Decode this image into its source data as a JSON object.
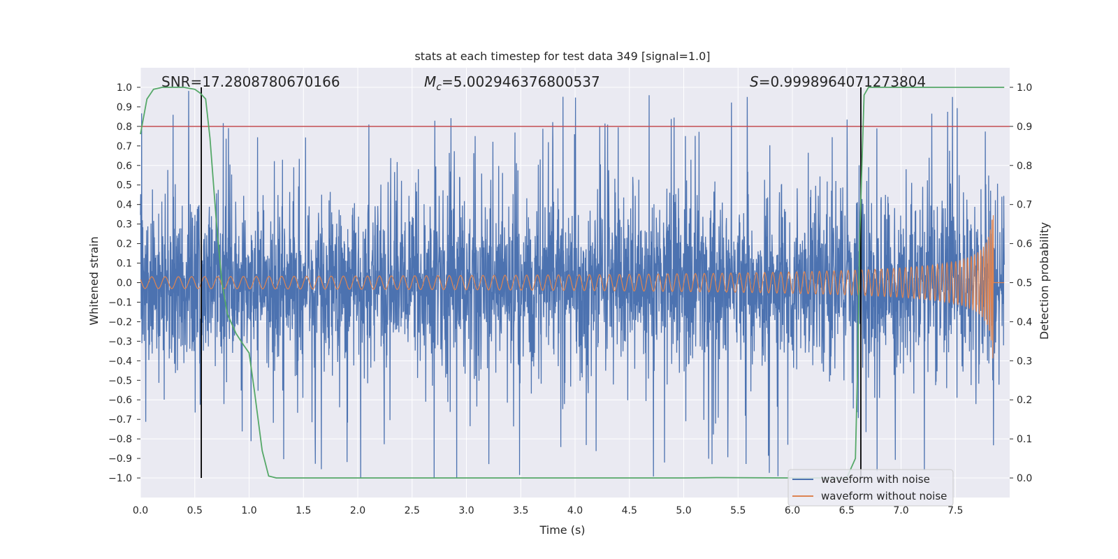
{
  "chart_data": {
    "type": "line",
    "title": "stats at each timestep for test data 349 [signal=1.0]",
    "xlabel": "Time (s)",
    "ylabel_left": "Whitened strain",
    "ylabel_right": "Detection probability",
    "xlim": [
      0.0,
      8.0
    ],
    "ylim_left": [
      -1.1,
      1.1
    ],
    "ylim_right": [
      -0.05,
      1.05
    ],
    "xticks": [
      "0.0",
      "0.5",
      "1.0",
      "1.5",
      "2.0",
      "2.5",
      "3.0",
      "3.5",
      "4.0",
      "4.5",
      "5.0",
      "5.5",
      "6.0",
      "6.5",
      "7.0",
      "7.5"
    ],
    "yticks_left": [
      "1.0",
      "0.9",
      "0.8",
      "0.7",
      "0.6",
      "0.5",
      "0.4",
      "0.3",
      "0.2",
      "0.1",
      "0.0",
      "−0.1",
      "−0.2",
      "−0.3",
      "−0.4",
      "−0.5",
      "−0.6",
      "−0.7",
      "−0.8",
      "−0.9",
      "−1.0"
    ],
    "yticks_right": [
      "1.0",
      "0.9",
      "0.8",
      "0.7",
      "0.6",
      "0.5",
      "0.4",
      "0.3",
      "0.2",
      "0.1",
      "0.0"
    ],
    "annotations": {
      "snr": "SNR=17.2808780670166",
      "mc_symbol": "M",
      "mc_sub": "c",
      "mc_value": "=5.002946376800537",
      "s_symbol": "S",
      "s_value": "=0.9998964071273804"
    },
    "threshold": {
      "axis": "right",
      "value": 0.9,
      "color": "#c44e52"
    },
    "vlines": [
      {
        "x": 0.56,
        "color": "#000000"
      },
      {
        "x": 6.63,
        "color": "#000000"
      }
    ],
    "series": [
      {
        "name": "waveform with noise",
        "axis": "left",
        "color": "#4c72b0",
        "description": "noisy whitened strain, mostly within about ±0.45 with spikes up to ±1.0",
        "typical_amplitude": 0.45,
        "peak_amplitude": 1.0
      },
      {
        "name": "waveform without noise",
        "axis": "left",
        "color": "#dd8452",
        "description": "chirp signal growing from ±0.03 to ±0.42, merger near 7.85 s",
        "amplitude_start": 0.03,
        "amplitude_peak": 0.42,
        "merger_time": 7.85
      },
      {
        "name": "detection probability",
        "axis": "right",
        "color": "#55a868",
        "x": [
          0.0,
          0.06,
          0.12,
          0.2,
          0.3,
          0.4,
          0.5,
          0.55,
          0.6,
          0.64,
          0.7,
          0.75,
          0.8,
          0.88,
          0.95,
          1.0,
          1.05,
          1.12,
          1.18,
          1.25,
          1.4,
          2.0,
          3.0,
          4.0,
          5.0,
          5.3,
          6.0,
          6.5,
          6.58,
          6.6,
          6.62,
          6.66,
          6.7,
          7.0,
          7.5,
          7.95
        ],
        "y": [
          0.88,
          0.97,
          0.995,
          1.0,
          1.0,
          1.0,
          0.995,
          0.985,
          0.97,
          0.87,
          0.65,
          0.5,
          0.42,
          0.37,
          0.34,
          0.32,
          0.22,
          0.07,
          0.005,
          0.0,
          0.0,
          0.0,
          0.0,
          0.0,
          0.0,
          0.001,
          0.0,
          0.0,
          0.05,
          0.28,
          0.62,
          0.98,
          1.0,
          1.0,
          1.0,
          1.0
        ]
      }
    ],
    "legend": [
      "waveform with noise",
      "waveform without noise"
    ],
    "legend_location": "lower right",
    "grid": true
  }
}
